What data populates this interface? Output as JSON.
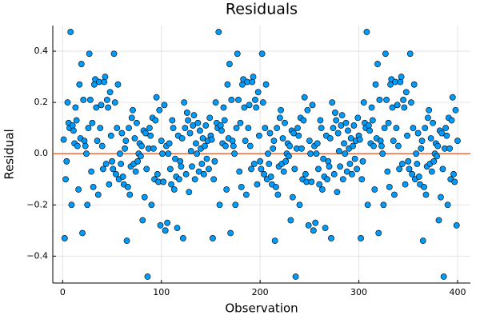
{
  "chart_data": {
    "type": "scatter",
    "title": "Residuals",
    "x_label": "Observation",
    "y_label": "Residual",
    "xlim": [
      -10,
      413
    ],
    "ylim": [
      -0.505,
      0.5
    ],
    "xticks": [
      0,
      100,
      200,
      300,
      400
    ],
    "yticks": [
      {
        "value": -0.4,
        "label": "−0.4"
      },
      {
        "value": -0.2,
        "label": "−0.2"
      },
      {
        "value": 0,
        "label": "0.0"
      },
      0.2,
      0.4
    ],
    "grid": true,
    "hline": 0,
    "hline_color": "#e26f46",
    "series": [
      {
        "color": "#009af9",
        "x": [
          1,
          2,
          3,
          4,
          5,
          6,
          7,
          8,
          9,
          10,
          11,
          12,
          13,
          14,
          15,
          16,
          17,
          18,
          19,
          20,
          21,
          22,
          23,
          24,
          25,
          26,
          27,
          28,
          29,
          30,
          31,
          32,
          33,
          34,
          35,
          36,
          37,
          38,
          39,
          40,
          41,
          42,
          43,
          44,
          45,
          46,
          47,
          48,
          49,
          50,
          51,
          52,
          53,
          54,
          55,
          56,
          57,
          58,
          59,
          60,
          61,
          62,
          63,
          64,
          65,
          66,
          67,
          68,
          69,
          70,
          71,
          72,
          73,
          74,
          75,
          76,
          77,
          78,
          79,
          80,
          81,
          82,
          83,
          84,
          85,
          86,
          87,
          88,
          89,
          90,
          91,
          92,
          93,
          94,
          95,
          96,
          97,
          98,
          99,
          100,
          101,
          102,
          103,
          104,
          105,
          106,
          107,
          108,
          109,
          110,
          111,
          112,
          113,
          114,
          115,
          116,
          117,
          118,
          119,
          120,
          121,
          122,
          123,
          124,
          125,
          126,
          127,
          128,
          129,
          130,
          131,
          132,
          133,
          134,
          135,
          136,
          137,
          138,
          139,
          140,
          141,
          142,
          143,
          144,
          145,
          146,
          147,
          148,
          149,
          150,
          151,
          152,
          153,
          154,
          155,
          156,
          157,
          158,
          159,
          160,
          161,
          162,
          163,
          164,
          165,
          166,
          167,
          168,
          169,
          170,
          171,
          172,
          173,
          174,
          175,
          176,
          177,
          178,
          179,
          180,
          181,
          182,
          183,
          184,
          185,
          186,
          187,
          188,
          189,
          190,
          191,
          192,
          193,
          194,
          195,
          196,
          197,
          198,
          199,
          200,
          201,
          202,
          203,
          204,
          205,
          206,
          207,
          208,
          209,
          210,
          211,
          212,
          213,
          214,
          215,
          216,
          217,
          218,
          219,
          220,
          221,
          222,
          223,
          224,
          225,
          226,
          227,
          228,
          229,
          230,
          231,
          232,
          233,
          234,
          235,
          236,
          237,
          238,
          239,
          240,
          241,
          242,
          243,
          244,
          245,
          246,
          247,
          248,
          249,
          250,
          251,
          252,
          253,
          254,
          255,
          256,
          257,
          258,
          259,
          260,
          261,
          262,
          263,
          264,
          265,
          266,
          267,
          268,
          269,
          270,
          271,
          272,
          273,
          274,
          275,
          276,
          277,
          278,
          279,
          280,
          281,
          282,
          283,
          284,
          285,
          286,
          287,
          288,
          289,
          290,
          291,
          292,
          293,
          294,
          295,
          296,
          297,
          298,
          299,
          300,
          301,
          302,
          303,
          304,
          305,
          306,
          307,
          308,
          309,
          310,
          311,
          312,
          313,
          314,
          315,
          316,
          317,
          318,
          319,
          320,
          321,
          322,
          323,
          324,
          325,
          326,
          327,
          328,
          329,
          330,
          331,
          332,
          333,
          334,
          335,
          336,
          337,
          338,
          339,
          340,
          341,
          342,
          343,
          344,
          345,
          346,
          347,
          348,
          349,
          350,
          351,
          352,
          353,
          354,
          355,
          356,
          357,
          358,
          359,
          360,
          361,
          362,
          363,
          364,
          365,
          366,
          367,
          368,
          369,
          370,
          371,
          372,
          373,
          374,
          375,
          376,
          377,
          378,
          379,
          380,
          381,
          382,
          383,
          384,
          385,
          386,
          387,
          388,
          389,
          390,
          391,
          392,
          393,
          394,
          395,
          396,
          397,
          398,
          399,
          400
        ],
        "values": [
          0.055,
          -0.33,
          -0.1,
          -0.03,
          0.2,
          0.12,
          0.1,
          0.475,
          -0.2,
          0.11,
          0.09,
          0.04,
          0.18,
          0.13,
          0.03,
          -0.14,
          0.27,
          0.06,
          0.35,
          -0.31,
          0.21,
          0.05,
          0.03,
          0.0,
          -0.2,
          0.1,
          0.39,
          0.21,
          -0.07,
          0.12,
          -0.13,
          0.27,
          0.29,
          0.18,
          0.05,
          -0.16,
          0.28,
          0.1,
          0.19,
          0.03,
          -0.06,
          0.28,
          0.3,
          -0.04,
          0.21,
          0.18,
          -0.12,
          0.24,
          0.07,
          -0.03,
          -0.06,
          0.39,
          0.2,
          -0.08,
          0.1,
          0.27,
          -0.1,
          0.0,
          -0.04,
          0.08,
          -0.09,
          -0.12,
          0.02,
          0.05,
          -0.34,
          -0.13,
          0.1,
          -0.16,
          -0.05,
          0.14,
          0.17,
          -0.04,
          0.06,
          -0.07,
          0.12,
          -0.03,
          0.0,
          0.04,
          -0.01,
          0.03,
          -0.26,
          0.09,
          -0.17,
          0.08,
          -0.06,
          -0.48,
          0.02,
          0.1,
          0.07,
          -0.2,
          0.14,
          0.02,
          -0.1,
          0.13,
          0.22,
          -0.08,
          -0.11,
          0.17,
          -0.28,
          0.05,
          0.0,
          -0.11,
          0.19,
          -0.3,
          0.03,
          -0.27,
          0.0,
          0.04,
          -0.06,
          -0.12,
          0.13,
          0.1,
          -0.14,
          -0.02,
          -0.09,
          -0.29,
          0.07,
          -0.1,
          -0.03,
          -0.05,
          0.06,
          -0.33,
          0.2,
          0.1,
          -0.08,
          0.16,
          0.13,
          -0.15,
          0.08,
          0.01,
          -0.05,
          0.11,
          0.15,
          -0.1,
          0.04,
          0.0,
          0.12,
          -0.07,
          0.09,
          0.02,
          -0.04,
          0.06,
          -0.08,
          0.03,
          0.11,
          -0.02,
          0.05,
          -0.06,
          0.14,
          0.07,
          0.055,
          -0.33,
          -0.1,
          -0.03,
          0.2,
          0.12,
          0.1,
          0.475,
          -0.2,
          0.11,
          0.09,
          0.04,
          0.18,
          0.13,
          0.03,
          -0.14,
          0.27,
          0.06,
          0.35,
          -0.31,
          0.21,
          0.05,
          0.03,
          0.0,
          -0.2,
          0.1,
          0.39,
          0.21,
          -0.07,
          0.12,
          -0.13,
          0.27,
          0.29,
          0.18,
          0.05,
          -0.16,
          0.28,
          0.1,
          0.19,
          0.03,
          -0.06,
          0.28,
          0.3,
          -0.04,
          0.21,
          0.18,
          -0.12,
          0.24,
          0.07,
          -0.03,
          -0.06,
          0.39,
          0.2,
          -0.08,
          0.1,
          0.27,
          -0.1,
          0.0,
          -0.04,
          0.08,
          -0.09,
          -0.12,
          0.02,
          0.05,
          -0.34,
          -0.13,
          0.1,
          -0.16,
          -0.05,
          0.14,
          0.17,
          -0.04,
          0.06,
          -0.07,
          0.12,
          -0.03,
          0.0,
          0.04,
          -0.01,
          0.03,
          -0.26,
          0.09,
          -0.17,
          0.08,
          -0.06,
          -0.48,
          0.02,
          0.1,
          0.07,
          -0.2,
          0.14,
          0.02,
          -0.1,
          0.13,
          0.22,
          -0.08,
          -0.11,
          0.17,
          -0.28,
          0.05,
          0.0,
          -0.11,
          0.19,
          -0.3,
          0.03,
          -0.27,
          0.0,
          0.04,
          -0.06,
          -0.12,
          0.13,
          0.1,
          -0.14,
          -0.02,
          -0.09,
          -0.29,
          0.07,
          -0.1,
          -0.03,
          -0.05,
          0.06,
          -0.33,
          0.2,
          0.1,
          -0.08,
          0.16,
          0.13,
          -0.15,
          0.08,
          0.01,
          -0.05,
          0.11,
          0.15,
          -0.1,
          0.04,
          0.0,
          0.12,
          -0.07,
          0.09,
          0.02,
          -0.04,
          0.06,
          -0.08,
          0.03,
          0.11,
          -0.02,
          0.05,
          -0.06,
          0.14,
          0.07,
          0.055,
          -0.33,
          -0.1,
          -0.03,
          0.2,
          0.12,
          0.1,
          0.475,
          -0.2,
          0.11,
          0.09,
          0.04,
          0.18,
          0.13,
          0.03,
          -0.14,
          0.27,
          0.06,
          0.35,
          -0.31,
          0.21,
          0.05,
          0.03,
          0.0,
          -0.2,
          0.1,
          0.39,
          0.21,
          -0.07,
          0.12,
          -0.13,
          0.27,
          0.29,
          0.18,
          0.05,
          -0.16,
          0.28,
          0.1,
          0.19,
          0.03,
          -0.06,
          0.28,
          0.3,
          -0.04,
          0.21,
          0.18,
          -0.12,
          0.24,
          0.07,
          -0.03,
          -0.06,
          0.39,
          0.2,
          -0.08,
          0.1,
          0.27,
          -0.1,
          0.0,
          -0.04,
          0.08,
          -0.09,
          -0.12,
          0.02,
          0.05,
          -0.34,
          -0.13,
          0.1,
          -0.16,
          -0.05,
          0.14,
          0.17,
          -0.04,
          0.06,
          -0.07,
          0.12,
          -0.03,
          0.0,
          0.04,
          -0.01,
          0.03,
          -0.26,
          0.09,
          -0.17,
          0.08,
          -0.06,
          -0.48,
          0.02,
          0.1,
          0.07,
          -0.2,
          0.14,
          0.02,
          -0.1,
          0.13,
          0.22,
          -0.08,
          -0.11,
          0.17,
          -0.28,
          0.05
        ]
      }
    ]
  }
}
